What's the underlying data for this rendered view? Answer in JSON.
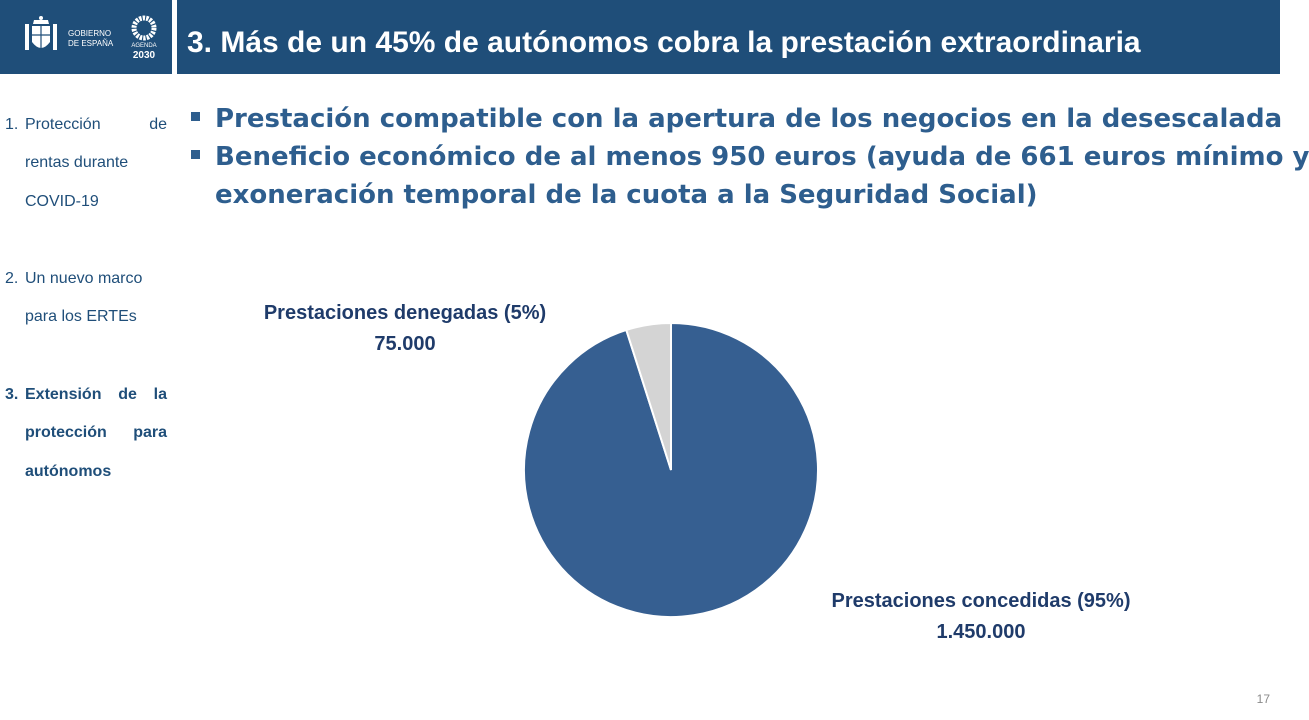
{
  "header": {
    "title": "3. Más de un 45% de autónomos cobra la prestación extraordinaria",
    "gov_line1": "GOBIERNO",
    "gov_line2": "DE ESPAÑA",
    "agenda_word": "AGENDA",
    "agenda_year": "2030",
    "bar_color": "#1f4e79"
  },
  "sidebar": {
    "items": [
      {
        "num": "1.",
        "lines": [
          "Protección de",
          "rentas durante",
          "COVID-19"
        ],
        "active": false
      },
      {
        "num": "2.",
        "lines": [
          "Un nuevo marco",
          "para los ERTEs"
        ],
        "active": false
      },
      {
        "num": "3.",
        "lines": [
          "Extensión de la",
          "protección para",
          "autónomos"
        ],
        "active": true
      }
    ]
  },
  "bullets": [
    {
      "lines": [
        "Prestación compatible con la apertura de los negocios en la desescalada"
      ]
    },
    {
      "lines": [
        "Beneficio económico de al menos 950 euros (ayuda de 661 euros mínimo y",
        "exoneración temporal de la cuota a la Seguridad Social)"
      ]
    }
  ],
  "chart_data": {
    "type": "pie",
    "slices": [
      {
        "label": "Prestaciones concedidas (95%)",
        "value": 1450000,
        "value_label": "1.450.000",
        "color": "#365f91"
      },
      {
        "label": "Prestaciones denegadas (5%)",
        "value": 75000,
        "value_label": "75.000",
        "color": "#d4d4d4"
      }
    ]
  },
  "page_number": "17"
}
